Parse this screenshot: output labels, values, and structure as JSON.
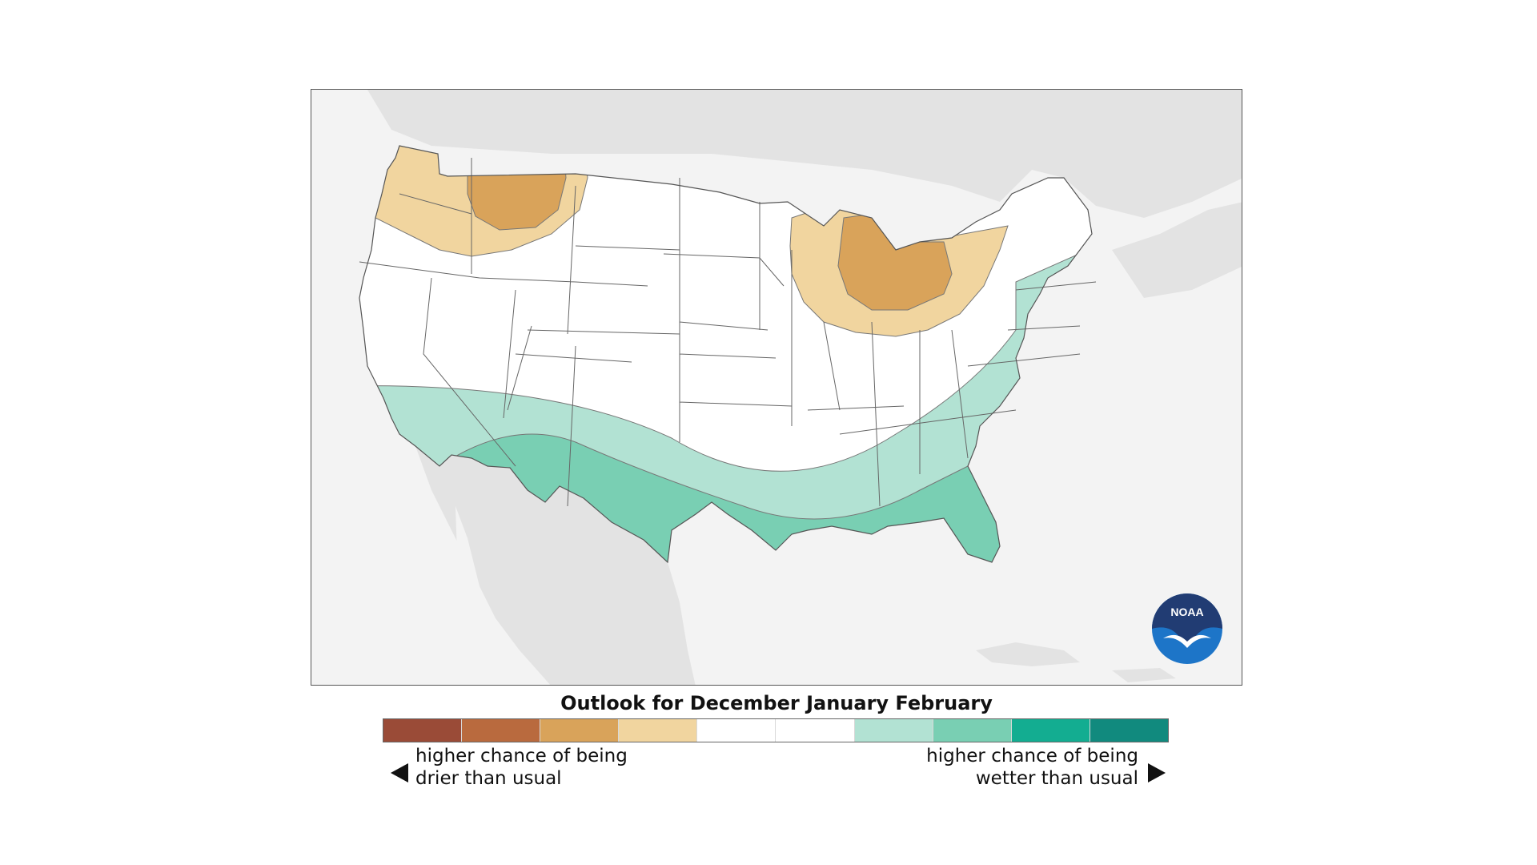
{
  "map": {
    "region": "Contiguous United States",
    "regions": [
      {
        "name": "Pacific Northwest / Northern Rockies",
        "category": "drier",
        "levels": [
          "lean",
          "likely"
        ]
      },
      {
        "name": "Great Lakes / Ohio Valley",
        "category": "drier",
        "levels": [
          "lean",
          "likely"
        ]
      },
      {
        "name": "Southern tier / Mid-Atlantic / Northeast coast",
        "category": "wetter",
        "levels": [
          "lean",
          "likely"
        ]
      }
    ],
    "logo_text": "NOAA"
  },
  "outlook": {
    "title": "Outlook for December January February"
  },
  "legend": {
    "colors": [
      "#9a4b37",
      "#b96a3e",
      "#d9a35a",
      "#f1d59f",
      "#ffffff",
      "#ffffff",
      "#b2e2d3",
      "#79cfb3",
      "#13ad91",
      "#118a7e"
    ],
    "dry_line1": "higher chance of being",
    "dry_line2": "drier than usual",
    "wet_line1": "higher chance of being",
    "wet_line2": "wetter than usual"
  },
  "colors": {
    "dry_lean": "#f1d59f",
    "dry_likely": "#d9a35a",
    "wet_lean": "#b2e2d3",
    "wet_likely": "#79cfb3",
    "background_land": "#e3e3e3",
    "ocean": "#f3f3f3",
    "noaa_blue": "#1d75c8",
    "noaa_navy": "#213c73"
  }
}
